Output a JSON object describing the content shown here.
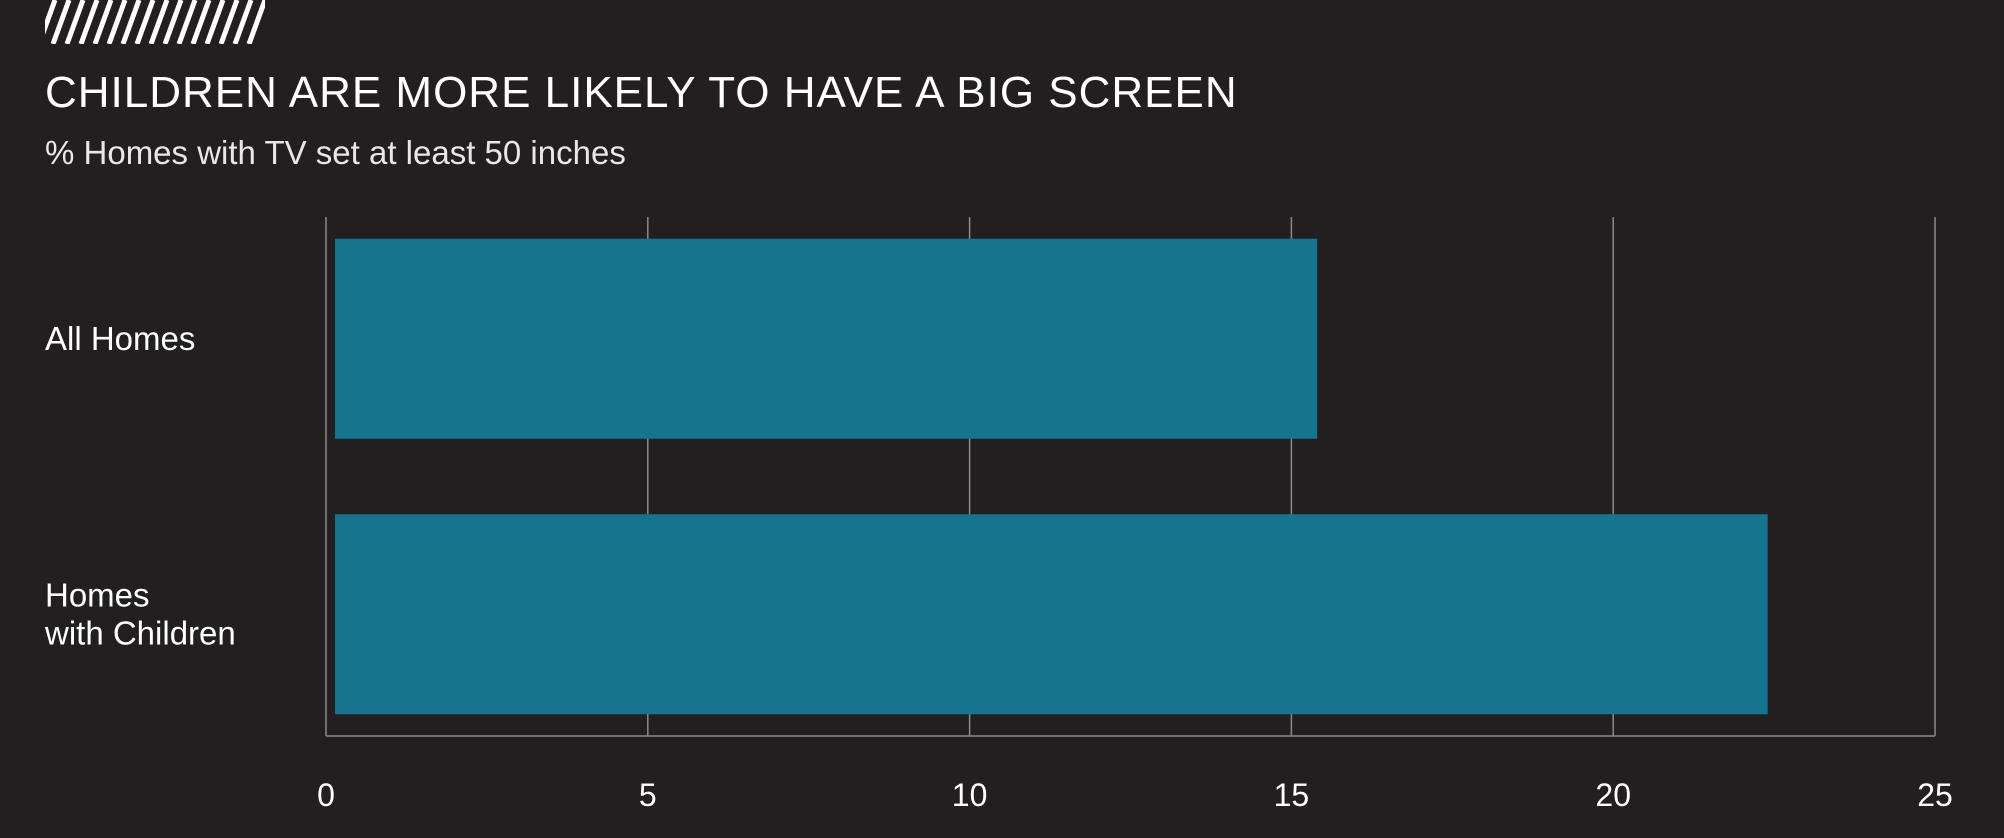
{
  "header": {
    "title": "CHILDREN ARE MORE LIKELY TO HAVE A BIG SCREEN",
    "subtitle": "% Homes with TV set at least 50 inches"
  },
  "chart_data": {
    "type": "bar",
    "orientation": "horizontal",
    "title": "CHILDREN ARE MORE LIKELY TO HAVE A BIG SCREEN",
    "subtitle": "% Homes with TV set at least 50 inches",
    "categories": [
      [
        "All Homes"
      ],
      [
        "Homes",
        "with Children"
      ]
    ],
    "values": [
      15.4,
      22.4
    ],
    "xlim": [
      0,
      25
    ],
    "x_ticks": [
      0,
      5,
      10,
      15,
      20,
      25
    ],
    "grid": "vertical",
    "legend": "none",
    "colors": {
      "background": "#231f20",
      "bar": "#15758f",
      "grid": "#8a8a8a",
      "text": "#ffffff"
    }
  }
}
